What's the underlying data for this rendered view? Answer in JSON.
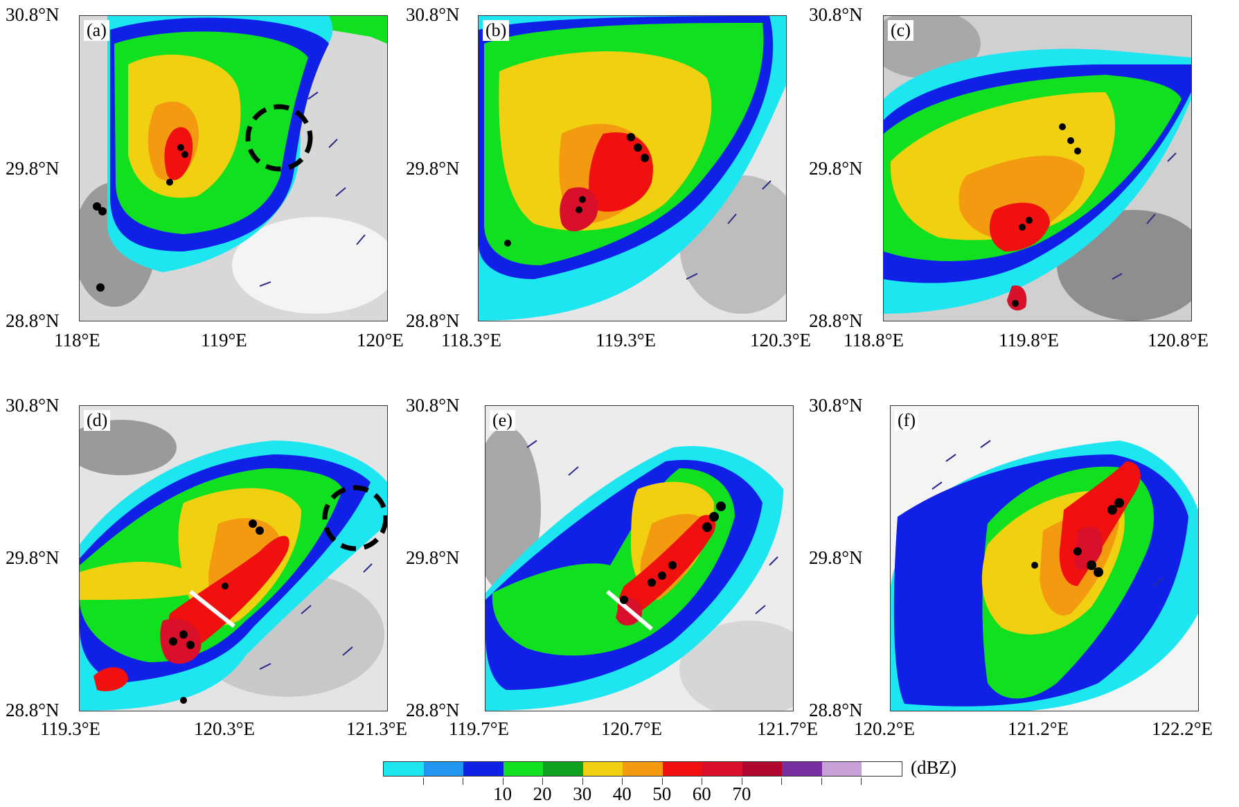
{
  "panels": [
    {
      "label": "(a)",
      "lat_top": "30.8°N",
      "lat_mid": "29.8°N",
      "lat_bot": "28.8°N",
      "lon": [
        "118°E",
        "119°E",
        "120°E"
      ]
    },
    {
      "label": "(b)",
      "lat_top": "30.8°N",
      "lat_mid": "29.8°N",
      "lat_bot": "28.8°N",
      "lon": [
        "118.3°E",
        "119.3°E",
        "120.3°E"
      ]
    },
    {
      "label": "(c)",
      "lat_top": "30.8°N",
      "lat_mid": "29.8°N",
      "lat_bot": "28.8°N",
      "lon": [
        "118.8°E",
        "119.8°E",
        "120.8°E"
      ]
    },
    {
      "label": "(d)",
      "lat_top": "30.8°N",
      "lat_mid": "29.8°N",
      "lat_bot": "28.8°N",
      "lon": [
        "119.3°E",
        "120.3°E",
        "121.3°E"
      ]
    },
    {
      "label": "(e)",
      "lat_top": "30.8°N",
      "lat_mid": "29.8°N",
      "lat_bot": "28.8°N",
      "lon": [
        "119.7°E",
        "120.7°E",
        "121.7°E"
      ]
    },
    {
      "label": "(f)",
      "lat_top": "30.8°N",
      "lat_mid": "29.8°N",
      "lat_bot": "28.8°N",
      "lon": [
        "120.2°E",
        "121.2°E",
        "122.2°E"
      ]
    }
  ],
  "colorbar": {
    "unit": "(dBZ)",
    "colors": [
      "#1ee6f0",
      "#2196f0",
      "#1020e6",
      "#10e020",
      "#10a020",
      "#f0d010",
      "#f39a10",
      "#f01010",
      "#d8102a",
      "#b0082e",
      "#7830a0",
      "#c8a0d8",
      "#ffffff"
    ],
    "labels": [
      "10",
      "20",
      "30",
      "40",
      "50",
      "60",
      "70"
    ]
  },
  "colors": {
    "reflectivity_low": "#1ee6f0",
    "reflectivity_high": "#d8102a",
    "wind_barb": "#2a2a8a",
    "county_line": "#444444",
    "dashed_circle": "#000000",
    "cross_section_line": "#ffffff"
  }
}
